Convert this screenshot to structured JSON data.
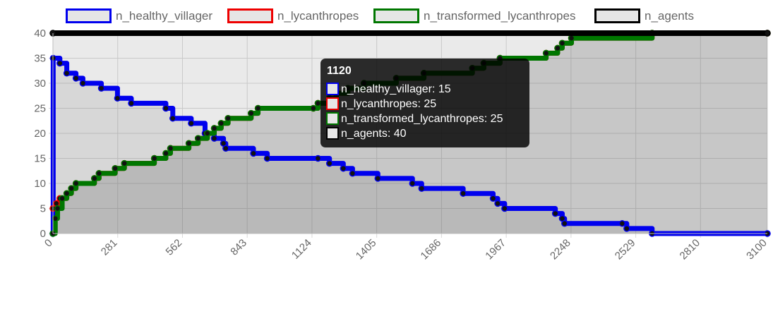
{
  "chart_data": {
    "type": "area",
    "xlabel": "",
    "ylabel": "",
    "xlim": [
      0,
      3100
    ],
    "ylim": [
      0,
      40
    ],
    "x_ticks": [
      "0",
      "281",
      "562",
      "843",
      "1124",
      "1405",
      "1686",
      "1967",
      "2248",
      "2529",
      "2810",
      "3100"
    ],
    "y_ticks": [
      "0",
      "5",
      "10",
      "15",
      "20",
      "25",
      "30",
      "35",
      "40"
    ],
    "grid": true,
    "legend_position": "top",
    "series": [
      {
        "name": "n_healthy_villager",
        "color": "#0000ee",
        "fill": "#e6e6e6",
        "points": [
          [
            0,
            0
          ],
          [
            1,
            35
          ],
          [
            30,
            34
          ],
          [
            60,
            32
          ],
          [
            100,
            31
          ],
          [
            130,
            30
          ],
          [
            210,
            29
          ],
          [
            280,
            27
          ],
          [
            340,
            26
          ],
          [
            490,
            25
          ],
          [
            520,
            23
          ],
          [
            600,
            22
          ],
          [
            660,
            20
          ],
          [
            700,
            19
          ],
          [
            740,
            18
          ],
          [
            750,
            17
          ],
          [
            870,
            16
          ],
          [
            930,
            15
          ],
          [
            1150,
            15
          ],
          [
            1200,
            14
          ],
          [
            1260,
            13
          ],
          [
            1300,
            12
          ],
          [
            1410,
            11
          ],
          [
            1560,
            10
          ],
          [
            1600,
            9
          ],
          [
            1780,
            8
          ],
          [
            1910,
            7
          ],
          [
            1930,
            6
          ],
          [
            1960,
            5
          ],
          [
            2180,
            4
          ],
          [
            2210,
            3
          ],
          [
            2220,
            2
          ],
          [
            2470,
            2
          ],
          [
            2490,
            1
          ],
          [
            2600,
            0
          ],
          [
            3100,
            0
          ]
        ]
      },
      {
        "name": "n_lycanthropes",
        "color": "#ee0000",
        "fill": "#e6e6e6",
        "points": [
          [
            0,
            5
          ],
          [
            15,
            6
          ],
          [
            30,
            7
          ],
          [
            60,
            8
          ],
          [
            80,
            9
          ],
          [
            100,
            10
          ],
          [
            180,
            11
          ],
          [
            200,
            12
          ],
          [
            270,
            13
          ],
          [
            310,
            14
          ],
          [
            440,
            15
          ],
          [
            490,
            16
          ],
          [
            510,
            17
          ],
          [
            590,
            18
          ],
          [
            630,
            19
          ],
          [
            670,
            20
          ],
          [
            700,
            21
          ],
          [
            730,
            22
          ],
          [
            760,
            23
          ],
          [
            860,
            24
          ],
          [
            890,
            25
          ],
          [
            1130,
            25
          ],
          [
            1150,
            26
          ],
          [
            1200,
            27
          ],
          [
            1230,
            28
          ],
          [
            1280,
            29
          ],
          [
            1350,
            30
          ],
          [
            1490,
            31
          ],
          [
            1610,
            32
          ],
          [
            1820,
            33
          ],
          [
            1870,
            34
          ],
          [
            1940,
            35
          ],
          [
            2140,
            36
          ],
          [
            2190,
            37
          ],
          [
            2210,
            38
          ],
          [
            2250,
            39
          ],
          [
            2600,
            40
          ],
          [
            3100,
            40
          ]
        ]
      },
      {
        "name": "n_transformed_lycanthropes",
        "color": "#007700",
        "fill": "#e6e6e6",
        "points": [
          [
            0,
            0
          ],
          [
            10,
            3
          ],
          [
            20,
            5
          ],
          [
            40,
            7
          ],
          [
            60,
            8
          ],
          [
            80,
            9
          ],
          [
            100,
            10
          ],
          [
            180,
            11
          ],
          [
            200,
            12
          ],
          [
            270,
            13
          ],
          [
            310,
            14
          ],
          [
            440,
            15
          ],
          [
            490,
            16
          ],
          [
            510,
            17
          ],
          [
            590,
            18
          ],
          [
            630,
            19
          ],
          [
            670,
            20
          ],
          [
            700,
            21
          ],
          [
            730,
            22
          ],
          [
            760,
            23
          ],
          [
            860,
            24
          ],
          [
            890,
            25
          ],
          [
            1130,
            25
          ],
          [
            1150,
            26
          ],
          [
            1200,
            27
          ],
          [
            1230,
            28
          ],
          [
            1280,
            29
          ],
          [
            1350,
            30
          ],
          [
            1490,
            31
          ],
          [
            1610,
            32
          ],
          [
            1820,
            33
          ],
          [
            1870,
            34
          ],
          [
            1940,
            35
          ],
          [
            2140,
            36
          ],
          [
            2190,
            37
          ],
          [
            2210,
            38
          ],
          [
            2250,
            39
          ],
          [
            2600,
            40
          ],
          [
            3100,
            40
          ]
        ]
      },
      {
        "name": "n_agents",
        "color": "#000000",
        "fill": "#e6e6e6",
        "points": [
          [
            0,
            40
          ],
          [
            3100,
            40
          ]
        ]
      }
    ],
    "tooltip": {
      "title": "1120",
      "items": [
        {
          "label": "n_healthy_villager: 15",
          "color": "#0000ee",
          "fill": "#e6e6e6"
        },
        {
          "label": "n_lycanthropes: 25",
          "color": "#ee0000",
          "fill": "#e6e6e6"
        },
        {
          "label": "n_transformed_lycanthropes: 25",
          "color": "#007700",
          "fill": "#e6e6e6"
        },
        {
          "label": "n_agents: 40",
          "color": "#000000",
          "fill": "#e6e6e6"
        }
      ]
    }
  }
}
